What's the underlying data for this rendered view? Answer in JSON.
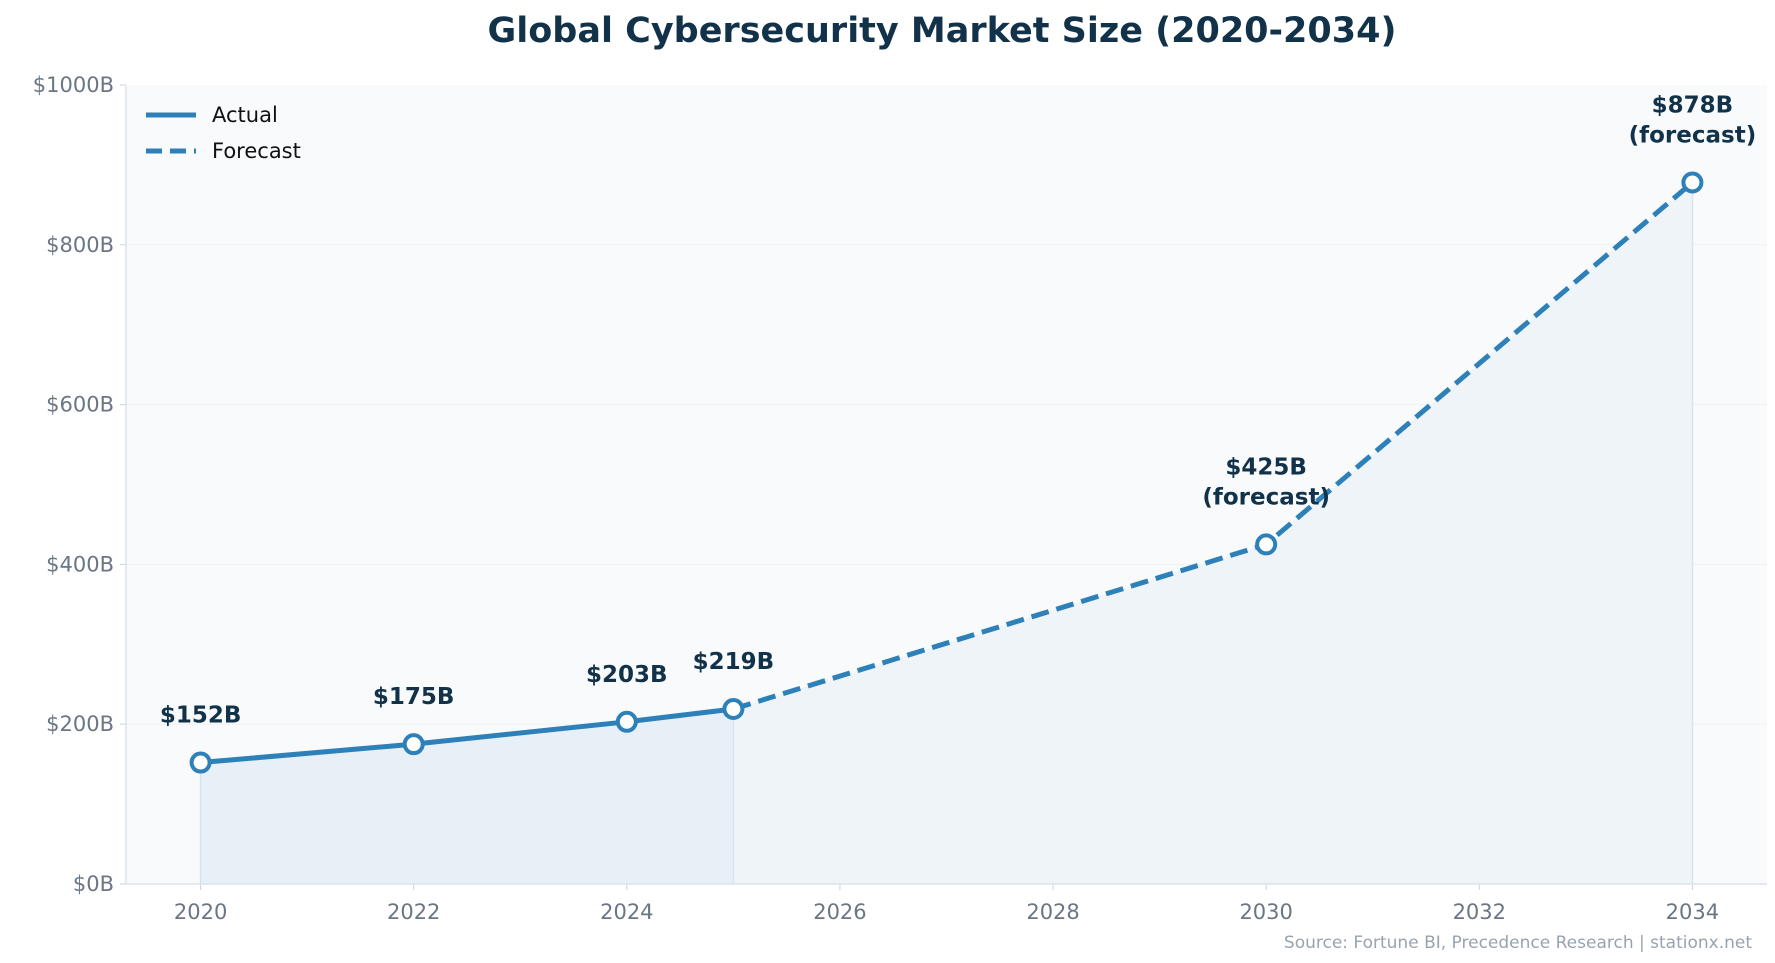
{
  "chart_data": {
    "type": "line",
    "title": "Global Cybersecurity Market Size (2020-2034)",
    "xlabel": "",
    "ylabel": "",
    "xlim": [
      2019.3,
      2034.7
    ],
    "ylim": [
      0,
      1000
    ],
    "x_ticks": [
      2020,
      2022,
      2024,
      2026,
      2028,
      2030,
      2032,
      2034
    ],
    "y_ticks": [
      0,
      200,
      400,
      600,
      800,
      1000
    ],
    "y_tick_labels": [
      "$0B",
      "$200B",
      "$400B",
      "$600B",
      "$800B",
      "$1000B"
    ],
    "grid": true,
    "legend_placement": "top-left",
    "colors": {
      "line": "#2e80b9",
      "title": "#12324a",
      "plot_bg": "#f8fafc",
      "actual_fill": "#e7eff7",
      "forecast_fill": "#eff4f9"
    },
    "series": [
      {
        "name": "Actual",
        "style": "solid",
        "x": [
          2020,
          2022,
          2024,
          2025
        ],
        "y": [
          152,
          175,
          203,
          219
        ]
      },
      {
        "name": "Forecast",
        "style": "dashed",
        "x": [
          2025,
          2030,
          2034
        ],
        "y": [
          219,
          425,
          878
        ]
      }
    ],
    "markers": [
      {
        "x": 2020,
        "y": 152,
        "label": [
          "$152B"
        ]
      },
      {
        "x": 2022,
        "y": 175,
        "label": [
          "$175B"
        ]
      },
      {
        "x": 2024,
        "y": 203,
        "label": [
          "$203B"
        ]
      },
      {
        "x": 2025,
        "y": 219,
        "label": [
          "$219B"
        ]
      },
      {
        "x": 2030,
        "y": 425,
        "label": [
          "$425B",
          "(forecast)"
        ]
      },
      {
        "x": 2034,
        "y": 878,
        "label": [
          "$878B",
          "(forecast)"
        ]
      }
    ],
    "source": "Source: Fortune BI, Precedence Research | stationx.net"
  }
}
